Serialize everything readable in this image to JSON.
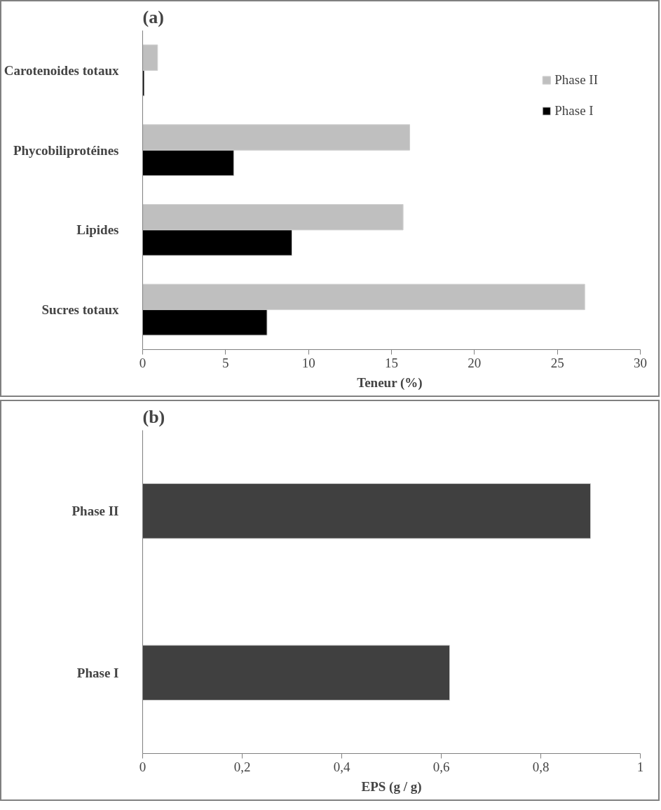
{
  "chart_data": [
    {
      "type": "bar",
      "orientation": "horizontal",
      "title": "(a)",
      "xlabel": "Teneur  (%)",
      "categories": [
        "Carotenoides totaux",
        "Phycobiliprotéines",
        "Lipides",
        "Sucres totaux"
      ],
      "series": [
        {
          "name": "Phase II",
          "color": "#bfbfbf",
          "values": [
            0.9,
            16.1,
            15.7,
            26.65
          ]
        },
        {
          "name": "Phase I",
          "color": "#000000",
          "values": [
            0.1,
            5.5,
            9.0,
            7.5
          ]
        }
      ],
      "xlim": [
        0,
        30
      ],
      "xticks": [
        0,
        5,
        10,
        15,
        20,
        25,
        30
      ],
      "grid": false,
      "legend": "top right"
    },
    {
      "type": "bar",
      "orientation": "horizontal",
      "title": "(b)",
      "xlabel": "EPS (g / g)",
      "categories": [
        "Phase II",
        "Phase I"
      ],
      "series": [
        {
          "color": "#404040",
          "values": [
            0.9,
            0.617
          ]
        }
      ],
      "xlim": [
        0,
        1
      ],
      "xticks": [
        0,
        {
          "value": 0.2,
          "label": "0,2"
        },
        {
          "value": 0.4,
          "label": "0,4"
        },
        {
          "value": 0.6,
          "label": "0,6"
        },
        {
          "value": 0.8,
          "label": "0,8"
        },
        1
      ],
      "grid": false,
      "legend": false
    }
  ]
}
